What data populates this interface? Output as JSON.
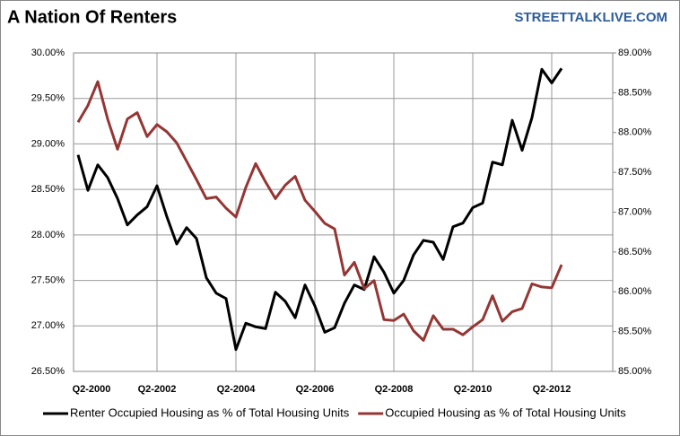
{
  "chart_data": {
    "type": "line",
    "title": "A Nation Of Renters",
    "annotations": [
      "STREETTALKLIVE.COM"
    ],
    "categories": [
      "Q2-2000",
      null,
      null,
      null,
      null,
      null,
      null,
      null,
      "Q2-2002",
      null,
      null,
      null,
      null,
      null,
      null,
      null,
      "Q2-2004",
      null,
      null,
      null,
      null,
      null,
      null,
      null,
      "Q2-2006",
      null,
      null,
      null,
      null,
      null,
      null,
      null,
      "Q2-2008",
      null,
      null,
      null,
      null,
      null,
      null,
      null,
      "Q2-2010",
      null,
      null,
      null,
      null,
      null,
      null,
      null,
      "Q2-2012",
      null
    ],
    "series": [
      {
        "name": "Renter Occupied Housing as % of Total Housing Units",
        "color": "#000000",
        "axis": "y",
        "values": [
          28.88,
          28.49,
          28.77,
          28.63,
          28.4,
          28.11,
          28.22,
          28.31,
          28.54,
          28.2,
          27.9,
          28.08,
          27.96,
          27.53,
          27.36,
          27.3,
          26.74,
          27.03,
          26.99,
          26.97,
          27.37,
          27.27,
          27.09,
          27.45,
          27.22,
          26.93,
          26.98,
          27.25,
          27.45,
          27.4,
          27.76,
          27.59,
          27.36,
          27.5,
          27.78,
          27.94,
          27.92,
          27.73,
          28.09,
          28.13,
          28.3,
          28.35,
          28.8,
          28.77,
          29.26,
          28.93,
          29.29,
          29.82,
          29.67,
          29.83
        ]
      },
      {
        "name": "Occupied Housing as % of Total Housing Units",
        "color": "#943634",
        "axis": "y2",
        "values": [
          88.13,
          88.34,
          88.64,
          88.17,
          87.79,
          88.17,
          88.25,
          87.95,
          88.1,
          88.01,
          87.87,
          87.64,
          87.41,
          87.17,
          87.19,
          87.05,
          86.94,
          87.31,
          87.61,
          87.38,
          87.17,
          87.34,
          87.45,
          87.15,
          87.01,
          86.86,
          86.79,
          86.21,
          86.37,
          86.04,
          86.14,
          85.65,
          85.64,
          85.72,
          85.51,
          85.39,
          85.7,
          85.53,
          85.53,
          85.46,
          85.56,
          85.65,
          85.95,
          85.63,
          85.75,
          85.79,
          86.1,
          86.06,
          86.05,
          86.34
        ]
      }
    ],
    "ylim": [
      26.5,
      30
    ],
    "yticks": [
      {
        "value": 26.5,
        "label": "26.50%"
      },
      {
        "value": 27,
        "label": "27.00%"
      },
      {
        "value": 27.5,
        "label": "27.50%"
      },
      {
        "value": 28,
        "label": "28.00%"
      },
      {
        "value": 28.5,
        "label": "28.50%"
      },
      {
        "value": 29,
        "label": "29.00%"
      },
      {
        "value": 29.5,
        "label": "29.50%"
      },
      {
        "value": 30,
        "label": "30.00%"
      }
    ],
    "y2lim": [
      85,
      89
    ],
    "y2ticks": [
      {
        "value": 85,
        "label": "85.00%"
      },
      {
        "value": 85.5,
        "label": "85.50%"
      },
      {
        "value": 86,
        "label": "86.00%"
      },
      {
        "value": 86.5,
        "label": "86.50%"
      },
      {
        "value": 87,
        "label": "87.00%"
      },
      {
        "value": 87.5,
        "label": "87.50%"
      },
      {
        "value": 88,
        "label": "88.00%"
      },
      {
        "value": 88.5,
        "label": "88.50%"
      },
      {
        "value": 89,
        "label": "89.00%"
      }
    ],
    "grid": true,
    "legend": "bottom"
  }
}
